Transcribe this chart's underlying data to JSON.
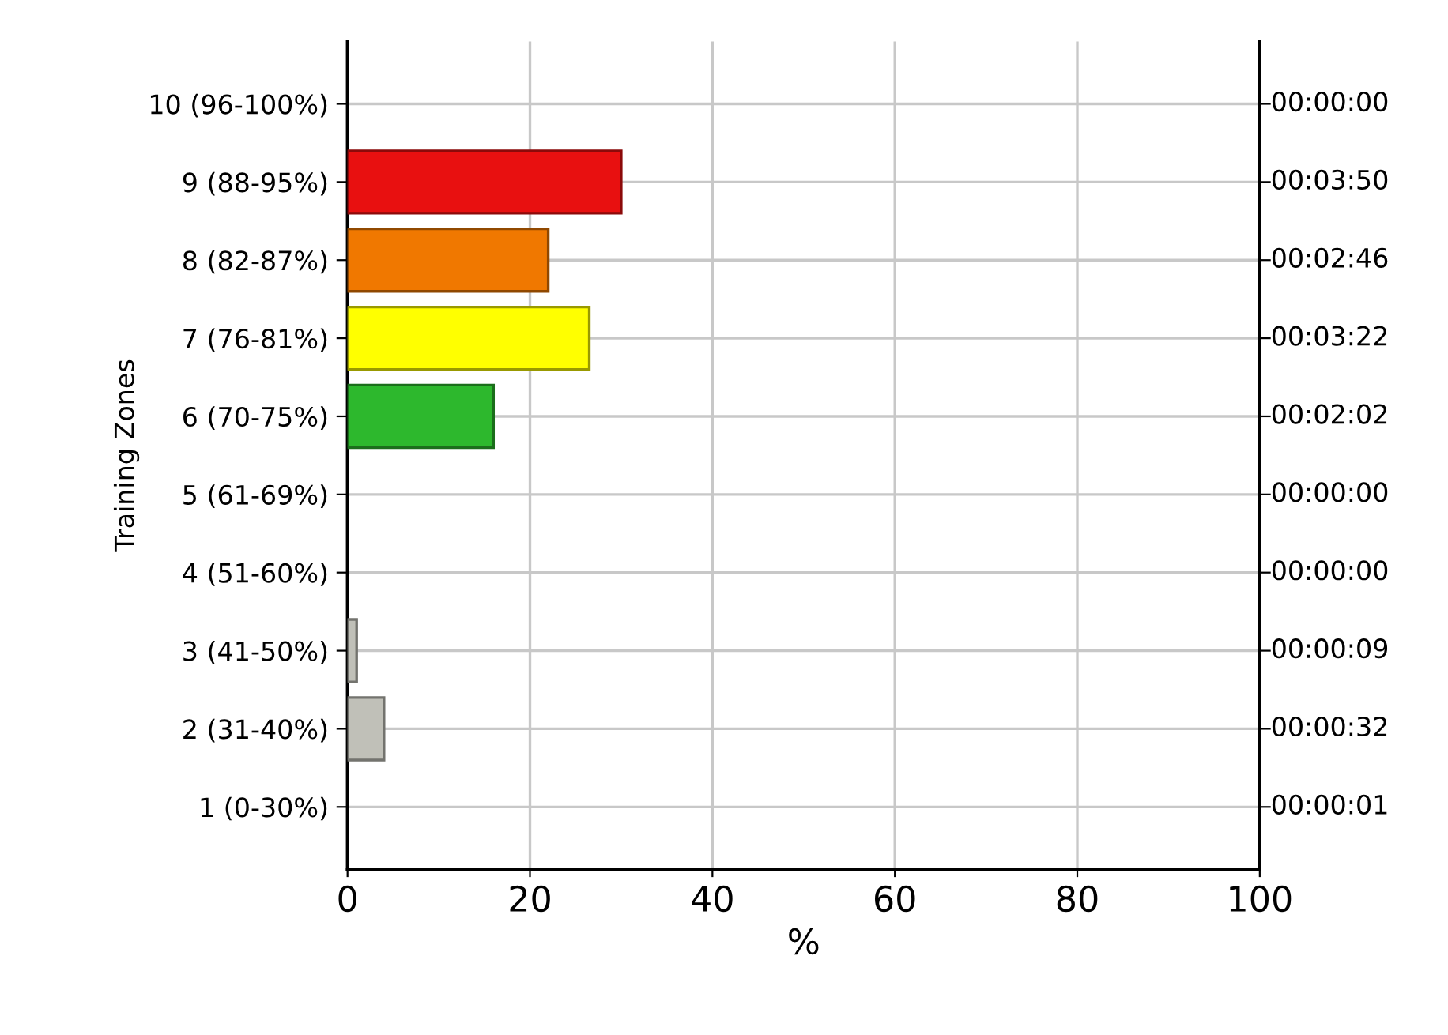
{
  "chart_data": {
    "type": "bar",
    "orientation": "horizontal",
    "ylabel": "Training Zones",
    "xlabel": "%",
    "categories": [
      "10 (96-100%)",
      "9 (88-95%)",
      "8 (82-87%)",
      "7 (76-81%)",
      "6 (70-75%)",
      "5 (61-69%)",
      "4 (51-60%)",
      "3 (41-50%)",
      "2 (31-40%)",
      "1 (0-30%)"
    ],
    "values": [
      0,
      30,
      22,
      26.5,
      16,
      0,
      0,
      1,
      4,
      0
    ],
    "colors": [
      "#c0c0b8",
      "#e81010",
      "#f07800",
      "#ffff00",
      "#2db82d",
      "#c0c0b8",
      "#c0c0b8",
      "#c0c0b8",
      "#c0c0b8",
      "#c0c0b8"
    ],
    "annotations": [
      "00:00:00",
      "00:03:50",
      "00:02:46",
      "00:03:22",
      "00:02:02",
      "00:00:00",
      "00:00:00",
      "00:00:09",
      "00:00:32",
      "00:00:01"
    ],
    "xlim": [
      0,
      100
    ],
    "xticks": [
      0,
      20,
      40,
      60,
      80,
      100
    ],
    "grid": true
  }
}
